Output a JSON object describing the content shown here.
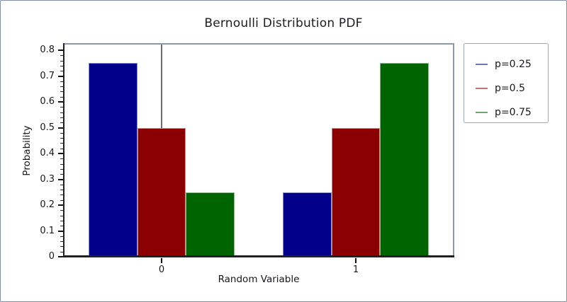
{
  "chart_data": {
    "type": "bar",
    "title": "Bernoulli Distribution PDF",
    "xlabel": "Random Variable",
    "ylabel": "Probability",
    "categories": [
      "0",
      "1"
    ],
    "series": [
      {
        "name": "p=0.25",
        "values": [
          0.75,
          0.25
        ],
        "bar_color": "#00008b",
        "legend_color": "#6f74bd"
      },
      {
        "name": "p=0.5",
        "values": [
          0.5,
          0.5
        ],
        "bar_color": "#8b0000",
        "legend_color": "#c07474"
      },
      {
        "name": "p=0.75",
        "values": [
          0.25,
          0.75
        ],
        "bar_color": "#006400",
        "legend_color": "#6fa771"
      }
    ],
    "bar_width": 0.25,
    "xlim": [
      -0.5,
      1.5
    ],
    "ylim": [
      0,
      0.822
    ],
    "yticks": [
      0,
      0.1,
      0.2,
      0.3,
      0.4,
      0.5,
      0.6,
      0.7,
      0.8
    ],
    "ytick_labels": [
      "0",
      "0.1",
      "0.2",
      "0.3",
      "0.4",
      "0.5",
      "0.6",
      "0.7",
      "0.8"
    ],
    "minor_tick_interval": 0.02,
    "grid": false,
    "zero_vline": true,
    "legend_position": "outside-upper-right",
    "colors": {
      "spine_dark": "#1d2127",
      "spine_light": "#8b99ac",
      "zero_line": "#6b6b6b",
      "figure_border": "#8290a5"
    }
  }
}
